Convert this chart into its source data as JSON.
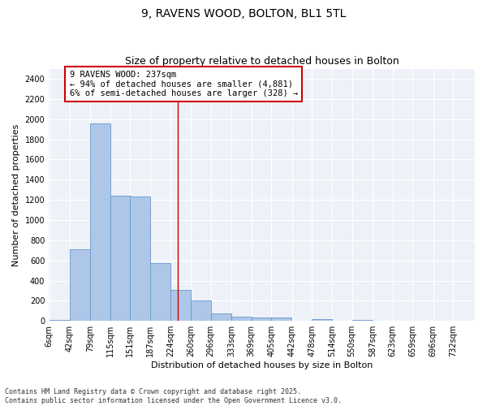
{
  "title": "9, RAVENS WOOD, BOLTON, BL1 5TL",
  "subtitle": "Size of property relative to detached houses in Bolton",
  "xlabel": "Distribution of detached houses by size in Bolton",
  "ylabel": "Number of detached properties",
  "bin_labels": [
    "6sqm",
    "42sqm",
    "79sqm",
    "115sqm",
    "151sqm",
    "187sqm",
    "224sqm",
    "260sqm",
    "296sqm",
    "333sqm",
    "369sqm",
    "405sqm",
    "442sqm",
    "478sqm",
    "514sqm",
    "550sqm",
    "587sqm",
    "623sqm",
    "659sqm",
    "696sqm",
    "732sqm"
  ],
  "bin_edges": [
    6,
    42,
    79,
    115,
    151,
    187,
    224,
    260,
    296,
    333,
    369,
    405,
    442,
    478,
    514,
    550,
    587,
    623,
    659,
    696,
    732
  ],
  "bar_heights": [
    10,
    710,
    1960,
    1240,
    1235,
    575,
    305,
    200,
    75,
    40,
    30,
    30,
    5,
    15,
    2,
    10,
    2,
    2,
    1,
    1,
    1
  ],
  "bar_color": "#aec6e8",
  "bar_edge_color": "#6699cc",
  "bar_edge_width": 0.6,
  "vline_x": 237,
  "vline_color": "#cc0000",
  "annotation_box_text": "9 RAVENS WOOD: 237sqm\n← 94% of detached houses are smaller (4,881)\n6% of semi-detached houses are larger (328) →",
  "box_edge_color": "#cc0000",
  "ylim": [
    0,
    2500
  ],
  "yticks": [
    0,
    200,
    400,
    600,
    800,
    1000,
    1200,
    1400,
    1600,
    1800,
    2000,
    2200,
    2400
  ],
  "background_color": "#eef2f8",
  "grid_color": "#ffffff",
  "footer_text": "Contains HM Land Registry data © Crown copyright and database right 2025.\nContains public sector information licensed under the Open Government Licence v3.0.",
  "title_fontsize": 10,
  "subtitle_fontsize": 9,
  "xlabel_fontsize": 8,
  "ylabel_fontsize": 8,
  "tick_fontsize": 7,
  "annotation_fontsize": 7.5,
  "footer_fontsize": 6
}
